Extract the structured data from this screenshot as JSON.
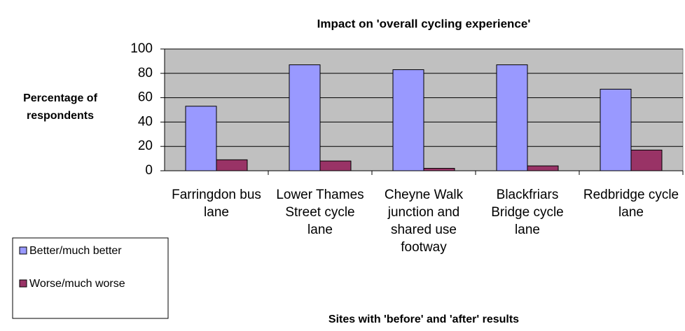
{
  "chart_data": {
    "type": "bar",
    "title": "Impact on 'overall cycling experience'",
    "y_label": "Percentage of respondents",
    "x_label": "Sites with 'before' and 'after' results",
    "categories": [
      "Farringdon bus lane",
      "Lower Thames Street cycle lane",
      "Cheyne Walk junction and shared use footway",
      "Blackfriars Bridge cycle lane",
      "Redbridge cycle lane"
    ],
    "series": [
      {
        "name": "Better/much better",
        "color": "#9999ff",
        "values": [
          53,
          87,
          83,
          87,
          67
        ]
      },
      {
        "name": "Worse/much worse",
        "color": "#993366",
        "values": [
          9,
          8,
          2,
          4,
          17
        ]
      }
    ],
    "ylim": [
      0,
      100
    ],
    "yticks": [
      0,
      20,
      40,
      60,
      80,
      100
    ],
    "grid": true,
    "legend": "bottom-left"
  }
}
